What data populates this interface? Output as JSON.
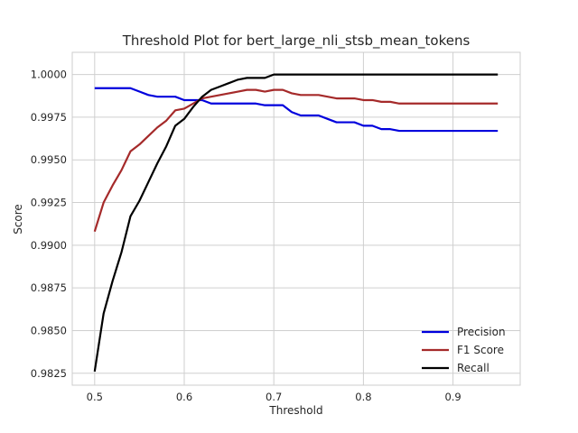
{
  "chart_data": {
    "type": "line",
    "title": "Threshold Plot for bert_large_nli_stsb_mean_tokens",
    "xlabel": "Threshold",
    "ylabel": "Score",
    "xlim": [
      0.475,
      0.975
    ],
    "ylim": [
      0.9818,
      1.0013
    ],
    "xticks": [
      0.5,
      0.6,
      0.7,
      0.8,
      0.9
    ],
    "xtick_labels": [
      "0.5",
      "0.6",
      "0.7",
      "0.8",
      "0.9"
    ],
    "yticks": [
      0.9825,
      0.985,
      0.9875,
      0.99,
      0.9925,
      0.995,
      0.9975,
      1.0
    ],
    "ytick_labels": [
      "0.9825",
      "0.9850",
      "0.9875",
      "0.9900",
      "0.9925",
      "0.9950",
      "0.9975",
      "1.0000"
    ],
    "grid": true,
    "legend_position": "lower-right",
    "x": [
      0.5,
      0.51,
      0.52,
      0.53,
      0.54,
      0.55,
      0.56,
      0.57,
      0.58,
      0.59,
      0.6,
      0.61,
      0.62,
      0.63,
      0.64,
      0.65,
      0.66,
      0.67,
      0.68,
      0.69,
      0.7,
      0.71,
      0.72,
      0.73,
      0.74,
      0.75,
      0.76,
      0.77,
      0.78,
      0.79,
      0.8,
      0.81,
      0.82,
      0.83,
      0.84,
      0.85,
      0.86,
      0.87,
      0.88,
      0.89,
      0.9,
      0.91,
      0.92,
      0.93,
      0.94,
      0.95
    ],
    "series": [
      {
        "name": "Precision",
        "color": "#0000dd",
        "values": [
          0.9992,
          0.9992,
          0.9992,
          0.9992,
          0.9992,
          0.999,
          0.9988,
          0.9987,
          0.9987,
          0.9987,
          0.9985,
          0.9985,
          0.9985,
          0.9983,
          0.9983,
          0.9983,
          0.9983,
          0.9983,
          0.9983,
          0.9982,
          0.9982,
          0.9982,
          0.9978,
          0.9976,
          0.9976,
          0.9976,
          0.9974,
          0.9972,
          0.9972,
          0.9972,
          0.997,
          0.997,
          0.9968,
          0.9968,
          0.9967,
          0.9967,
          0.9967,
          0.9967,
          0.9967,
          0.9967,
          0.9967,
          0.9967,
          0.9967,
          0.9967,
          0.9967,
          0.9967
        ]
      },
      {
        "name": "F1 Score",
        "color": "#a52a2a",
        "values": [
          0.9908,
          0.9925,
          0.9935,
          0.9944,
          0.9955,
          0.9959,
          0.9964,
          0.9969,
          0.9973,
          0.9979,
          0.998,
          0.9983,
          0.9986,
          0.9987,
          0.9988,
          0.9989,
          0.999,
          0.9991,
          0.9991,
          0.999,
          0.9991,
          0.9991,
          0.9989,
          0.9988,
          0.9988,
          0.9988,
          0.9987,
          0.9986,
          0.9986,
          0.9986,
          0.9985,
          0.9985,
          0.9984,
          0.9984,
          0.9983,
          0.9983,
          0.9983,
          0.9983,
          0.9983,
          0.9983,
          0.9983,
          0.9983,
          0.9983,
          0.9983,
          0.9983,
          0.9983
        ]
      },
      {
        "name": "Recall",
        "color": "#000000",
        "values": [
          0.9826,
          0.986,
          0.9879,
          0.9896,
          0.9917,
          0.9926,
          0.9937,
          0.9948,
          0.9958,
          0.997,
          0.9974,
          0.9981,
          0.9987,
          0.9991,
          0.9993,
          0.9995,
          0.9997,
          0.9998,
          0.9998,
          0.9998,
          1.0,
          1.0,
          1.0,
          1.0,
          1.0,
          1.0,
          1.0,
          1.0,
          1.0,
          1.0,
          1.0,
          1.0,
          1.0,
          1.0,
          1.0,
          1.0,
          1.0,
          1.0,
          1.0,
          1.0,
          1.0,
          1.0,
          1.0,
          1.0,
          1.0,
          1.0
        ]
      }
    ]
  }
}
